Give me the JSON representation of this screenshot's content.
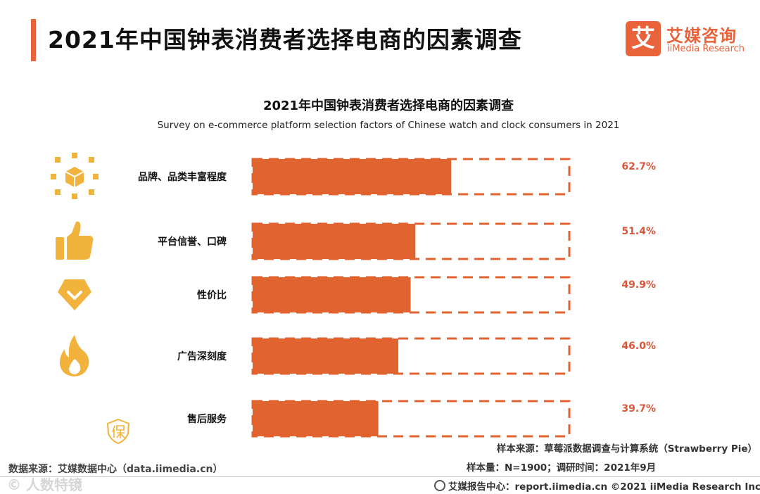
{
  "header": {
    "title": "2021年中国钟表消费者选择电商的因素调查"
  },
  "logo": {
    "mark": "艾",
    "name_cn": "艾媒咨询",
    "name_en": "iiMedia Research"
  },
  "colors": {
    "accent": "#e8623a",
    "bar": "#e06330",
    "icon": "#f2b33d",
    "value_label": "#d9573a"
  },
  "chart_data": {
    "type": "bar",
    "orientation": "horizontal",
    "title": "2021年中国钟表消费者选择电商的因素调查",
    "subtitle": "Survey on e-commerce platform selection factors of Chinese watch and clock consumers in 2021",
    "categories": [
      "品牌、品类丰富程度",
      "平台信誉、口碑",
      "性价比",
      "广告深刻度",
      "售后服务"
    ],
    "values": [
      62.7,
      51.4,
      49.9,
      46.0,
      39.7
    ],
    "value_labels": [
      "62.7%",
      "51.4%",
      "49.9%",
      "46.0%",
      "39.7%"
    ],
    "icons": [
      "cube-network-icon",
      "thumbs-up-icon",
      "shield-check-icon",
      "flame-icon",
      "guarantee-badge-icon"
    ],
    "xlim": [
      0,
      100
    ],
    "unit": "%",
    "grid": false,
    "legend": "none"
  },
  "sources": {
    "data_source": "数据来源：艾媒数据中心（data.iimedia.cn）",
    "sample_source": "样本来源：草莓派数据调查与计算系统（Strawberry Pie）",
    "sample_info": "样本量：N=1900；调研时间：2021年9月"
  },
  "watermark": "© 人数特镜",
  "footer": {
    "text": "艾媒报告中心：report.iimedia.cn  ©2021  iiMedia Research  Inc"
  }
}
